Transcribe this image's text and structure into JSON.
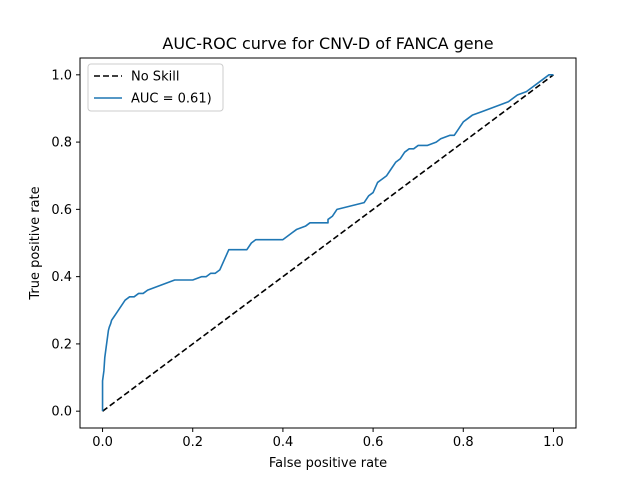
{
  "chart_data": {
    "type": "line",
    "title": "AUC-ROC curve for CNV-D of FANCA gene",
    "xlabel": "False positive rate",
    "ylabel": "True positive rate",
    "xlim": [
      -0.05,
      1.05
    ],
    "ylim": [
      -0.05,
      1.05
    ],
    "xticks": [
      0.0,
      0.2,
      0.4,
      0.6,
      0.8,
      1.0
    ],
    "yticks": [
      0.0,
      0.2,
      0.4,
      0.6,
      0.8,
      1.0
    ],
    "xtick_labels": [
      "0.0",
      "0.2",
      "0.4",
      "0.6",
      "0.8",
      "1.0"
    ],
    "ytick_labels": [
      "0.0",
      "0.2",
      "0.4",
      "0.6",
      "0.8",
      "1.0"
    ],
    "grid": false,
    "legend_position": "top-left",
    "series": [
      {
        "name": "No Skill",
        "color": "#000000",
        "style": "dashed",
        "x": [
          0.0,
          1.0
        ],
        "y": [
          0.0,
          1.0
        ]
      },
      {
        "name": "AUC = 0.61)",
        "color": "#1f77b4",
        "style": "solid",
        "x": [
          0.0,
          0.0,
          0.003,
          0.005,
          0.008,
          0.01,
          0.013,
          0.015,
          0.018,
          0.02,
          0.025,
          0.03,
          0.035,
          0.04,
          0.045,
          0.05,
          0.06,
          0.07,
          0.08,
          0.09,
          0.1,
          0.12,
          0.14,
          0.16,
          0.17,
          0.2,
          0.22,
          0.23,
          0.24,
          0.25,
          0.26,
          0.27,
          0.28,
          0.3,
          0.32,
          0.33,
          0.34,
          0.4,
          0.42,
          0.43,
          0.45,
          0.46,
          0.5,
          0.5,
          0.51,
          0.52,
          0.55,
          0.58,
          0.59,
          0.6,
          0.61,
          0.62,
          0.63,
          0.64,
          0.65,
          0.66,
          0.67,
          0.68,
          0.69,
          0.7,
          0.72,
          0.74,
          0.75,
          0.77,
          0.78,
          0.79,
          0.8,
          0.81,
          0.82,
          0.84,
          0.86,
          0.88,
          0.9,
          0.92,
          0.94,
          0.95,
          0.97,
          0.98,
          0.99,
          1.0
        ],
        "y": [
          0.0,
          0.09,
          0.12,
          0.16,
          0.19,
          0.21,
          0.24,
          0.25,
          0.26,
          0.27,
          0.28,
          0.29,
          0.3,
          0.31,
          0.32,
          0.33,
          0.34,
          0.34,
          0.35,
          0.35,
          0.36,
          0.37,
          0.38,
          0.39,
          0.39,
          0.39,
          0.4,
          0.4,
          0.41,
          0.41,
          0.42,
          0.45,
          0.48,
          0.48,
          0.48,
          0.5,
          0.51,
          0.51,
          0.53,
          0.54,
          0.55,
          0.56,
          0.56,
          0.57,
          0.58,
          0.6,
          0.61,
          0.62,
          0.64,
          0.65,
          0.68,
          0.69,
          0.7,
          0.72,
          0.74,
          0.75,
          0.77,
          0.78,
          0.78,
          0.79,
          0.79,
          0.8,
          0.81,
          0.82,
          0.82,
          0.84,
          0.86,
          0.87,
          0.88,
          0.89,
          0.9,
          0.91,
          0.92,
          0.94,
          0.95,
          0.96,
          0.98,
          0.99,
          1.0,
          1.0
        ]
      }
    ]
  }
}
